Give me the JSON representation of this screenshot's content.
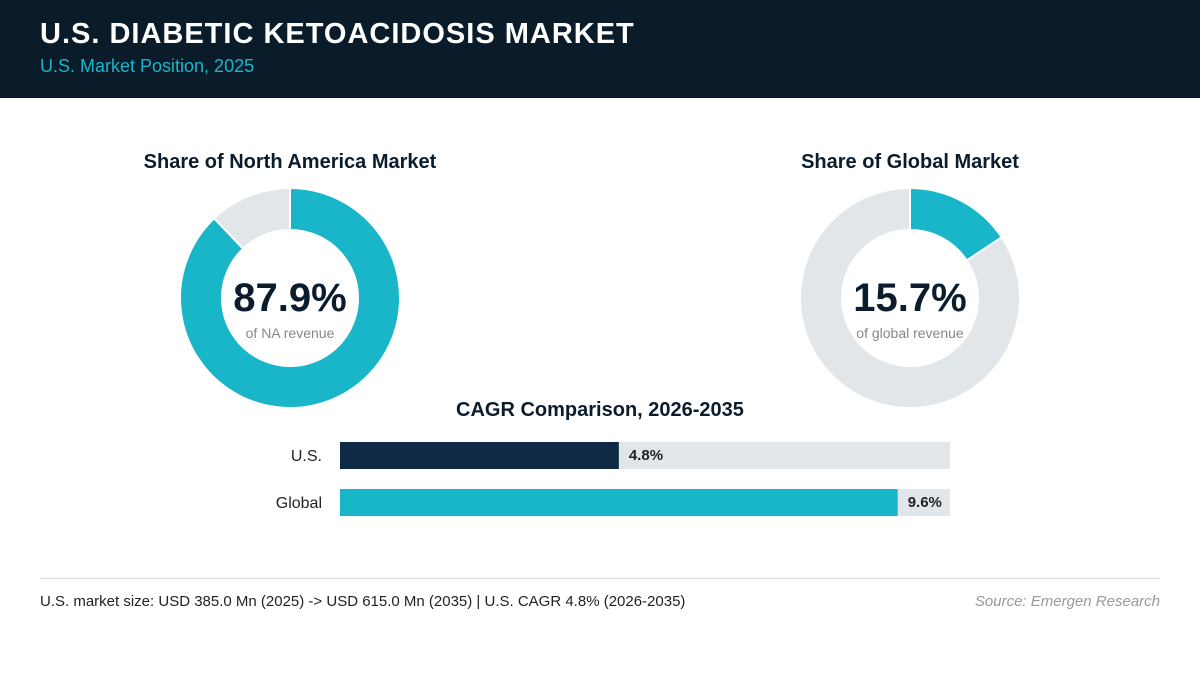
{
  "header": {
    "title": "U.S. DIABETIC KETOACIDOSIS MARKET",
    "subtitle": "U.S. Market Position, 2025"
  },
  "colors": {
    "header_bg": "#0a1b2a",
    "accent": "#19b6c9",
    "dark_bar": "#0e2a44",
    "track": "#e1e6eb"
  },
  "chart_data": [
    {
      "type": "pie",
      "title": "Share of North America Market",
      "value_label": "87.9%",
      "sub_label": "of NA revenue",
      "slices": [
        {
          "name": "U.S.",
          "value": 87.9
        },
        {
          "name": "Rest",
          "value": 12.1
        }
      ]
    },
    {
      "type": "pie",
      "title": "Share of Global Market",
      "value_label": "15.7%",
      "sub_label": "of global revenue",
      "slices": [
        {
          "name": "U.S.",
          "value": 15.7
        },
        {
          "name": "Rest",
          "value": 84.3
        }
      ]
    },
    {
      "type": "bar",
      "title": "CAGR Comparison, 2026-2035",
      "categories": [
        "U.S.",
        "Global"
      ],
      "values": [
        4.8,
        9.6
      ],
      "value_labels": [
        "4.8%",
        "9.6%"
      ],
      "xlim": [
        0,
        10.5
      ]
    }
  ],
  "footer": {
    "note": "U.S. market size: USD 385.0 Mn (2025) -> USD 615.0 Mn (2035)  |  U.S. CAGR 4.8% (2026-2035)",
    "source": "Source: Emergen Research"
  }
}
